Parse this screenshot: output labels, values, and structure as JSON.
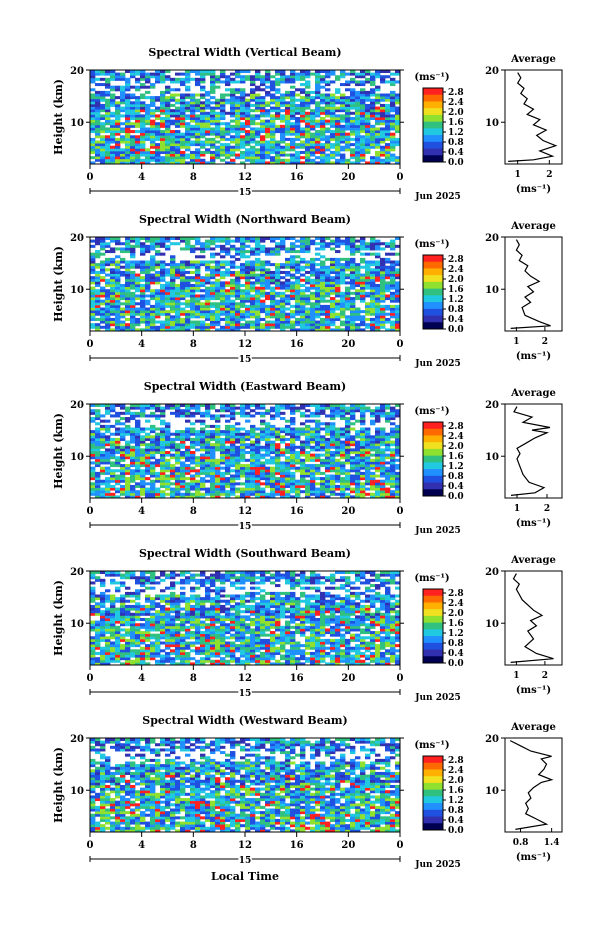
{
  "colorbar": {
    "unit": "(ms⁻¹)",
    "ticks": [
      "2.8",
      "2.4",
      "2.0",
      "1.6",
      "1.2",
      "0.8",
      "0.4",
      "0.0"
    ],
    "colors": [
      "#ff2020",
      "#ff6a00",
      "#ffb000",
      "#f0e020",
      "#90e030",
      "#30c080",
      "#20c8e0",
      "#2090ff",
      "#2050e0",
      "#3030b0",
      "#000050"
    ]
  },
  "x_axis": {
    "ticks": [
      "0",
      "4",
      "8",
      "12",
      "16",
      "20",
      "0"
    ],
    "date_label": "15",
    "month_label": "Jun 2025",
    "label": "Local Time"
  },
  "y_axis": {
    "label": "Height (km)",
    "ticks": [
      "20",
      "10"
    ]
  },
  "average_panel": {
    "title": "Average",
    "unit": "(ms⁻¹)"
  },
  "chart_data": [
    {
      "type": "heatmap",
      "title": "Spectral Width (Vertical Beam)",
      "xlim": [
        0,
        24
      ],
      "ylim": [
        2,
        20
      ],
      "yticks": [
        20,
        10
      ],
      "profile": {
        "xticks": [
          "1",
          "2"
        ],
        "xlim": [
          0.6,
          2.4
        ],
        "points": [
          [
            0.7,
            2.5
          ],
          [
            1.5,
            2.8
          ],
          [
            2.1,
            3.5
          ],
          [
            1.7,
            4.5
          ],
          [
            2.2,
            5.5
          ],
          [
            1.8,
            6.5
          ],
          [
            1.6,
            7.5
          ],
          [
            1.9,
            8.5
          ],
          [
            1.5,
            9.5
          ],
          [
            1.7,
            10.5
          ],
          [
            1.3,
            11.5
          ],
          [
            1.5,
            12.5
          ],
          [
            1.2,
            13.5
          ],
          [
            1.3,
            14.5
          ],
          [
            1.1,
            15.5
          ],
          [
            1.2,
            16.5
          ],
          [
            1.0,
            17.5
          ],
          [
            1.1,
            18.5
          ],
          [
            1.0,
            19.5
          ]
        ]
      }
    },
    {
      "type": "heatmap",
      "title": "Spectral Width (Northward Beam)",
      "xlim": [
        0,
        24
      ],
      "ylim": [
        2,
        20
      ],
      "yticks": [
        20,
        10
      ],
      "profile": {
        "xticks": [
          "1",
          "2"
        ],
        "xlim": [
          0.6,
          2.6
        ],
        "points": [
          [
            0.8,
            2.5
          ],
          [
            2.2,
            3.0
          ],
          [
            1.8,
            3.8
          ],
          [
            1.3,
            5.0
          ],
          [
            1.2,
            6.5
          ],
          [
            1.5,
            7.5
          ],
          [
            1.3,
            8.5
          ],
          [
            1.6,
            9.5
          ],
          [
            1.4,
            10.5
          ],
          [
            1.8,
            11.5
          ],
          [
            1.5,
            12.5
          ],
          [
            1.3,
            13.5
          ],
          [
            1.4,
            14.5
          ],
          [
            1.1,
            15.5
          ],
          [
            1.2,
            16.5
          ],
          [
            1.0,
            17.5
          ],
          [
            1.1,
            18.5
          ],
          [
            1.0,
            19.5
          ]
        ]
      }
    },
    {
      "type": "heatmap",
      "title": "Spectral Width (Eastward Beam)",
      "xlim": [
        0,
        24
      ],
      "ylim": [
        2,
        20
      ],
      "yticks": [
        20,
        10
      ],
      "profile": {
        "xticks": [
          "1",
          "2"
        ],
        "xlim": [
          0.6,
          2.5
        ],
        "points": [
          [
            0.8,
            2.5
          ],
          [
            1.6,
            3.0
          ],
          [
            1.9,
            4.0
          ],
          [
            1.4,
            5.0
          ],
          [
            1.2,
            6.5
          ],
          [
            1.1,
            8.0
          ],
          [
            1.0,
            9.5
          ],
          [
            1.1,
            10.5
          ],
          [
            1.0,
            11.5
          ],
          [
            1.3,
            12.5
          ],
          [
            1.6,
            13.5
          ],
          [
            2.0,
            14.5
          ],
          [
            1.5,
            15.0
          ],
          [
            2.1,
            15.5
          ],
          [
            1.2,
            16.5
          ],
          [
            1.5,
            17.5
          ],
          [
            0.9,
            18.5
          ],
          [
            1.0,
            19.5
          ]
        ]
      }
    },
    {
      "type": "heatmap",
      "title": "Spectral Width (Southward Beam)",
      "xlim": [
        0,
        24
      ],
      "ylim": [
        2,
        20
      ],
      "yticks": [
        20,
        10
      ],
      "profile": {
        "xticks": [
          "1",
          "2"
        ],
        "xlim": [
          0.6,
          2.6
        ],
        "points": [
          [
            0.8,
            2.5
          ],
          [
            2.3,
            3.2
          ],
          [
            1.7,
            4.2
          ],
          [
            1.3,
            5.5
          ],
          [
            1.6,
            7.0
          ],
          [
            1.4,
            8.5
          ],
          [
            1.7,
            9.5
          ],
          [
            1.5,
            10.5
          ],
          [
            1.9,
            11.5
          ],
          [
            1.6,
            12.5
          ],
          [
            1.4,
            13.5
          ],
          [
            1.2,
            14.5
          ],
          [
            1.1,
            15.5
          ],
          [
            1.0,
            16.5
          ],
          [
            1.1,
            17.5
          ],
          [
            0.9,
            18.5
          ],
          [
            1.0,
            19.5
          ]
        ]
      }
    },
    {
      "type": "heatmap",
      "title": "Spectral Width (Westward Beam)",
      "xlim": [
        0,
        24
      ],
      "ylim": [
        2,
        20
      ],
      "yticks": [
        20,
        10
      ],
      "profile": {
        "xticks": [
          "0.8",
          "1.4"
        ],
        "xlim": [
          0.5,
          1.6
        ],
        "points": [
          [
            0.7,
            2.5
          ],
          [
            1.3,
            3.5
          ],
          [
            1.1,
            4.5
          ],
          [
            0.9,
            5.5
          ],
          [
            0.95,
            6.5
          ],
          [
            0.9,
            7.5
          ],
          [
            1.0,
            8.5
          ],
          [
            0.95,
            9.5
          ],
          [
            1.05,
            10.5
          ],
          [
            1.2,
            11.5
          ],
          [
            1.4,
            12.0
          ],
          [
            1.15,
            13.0
          ],
          [
            1.25,
            14.0
          ],
          [
            1.3,
            15.0
          ],
          [
            1.2,
            16.0
          ],
          [
            1.4,
            16.5
          ],
          [
            1.0,
            17.5
          ],
          [
            0.8,
            18.5
          ],
          [
            0.6,
            19.5
          ]
        ]
      }
    }
  ]
}
